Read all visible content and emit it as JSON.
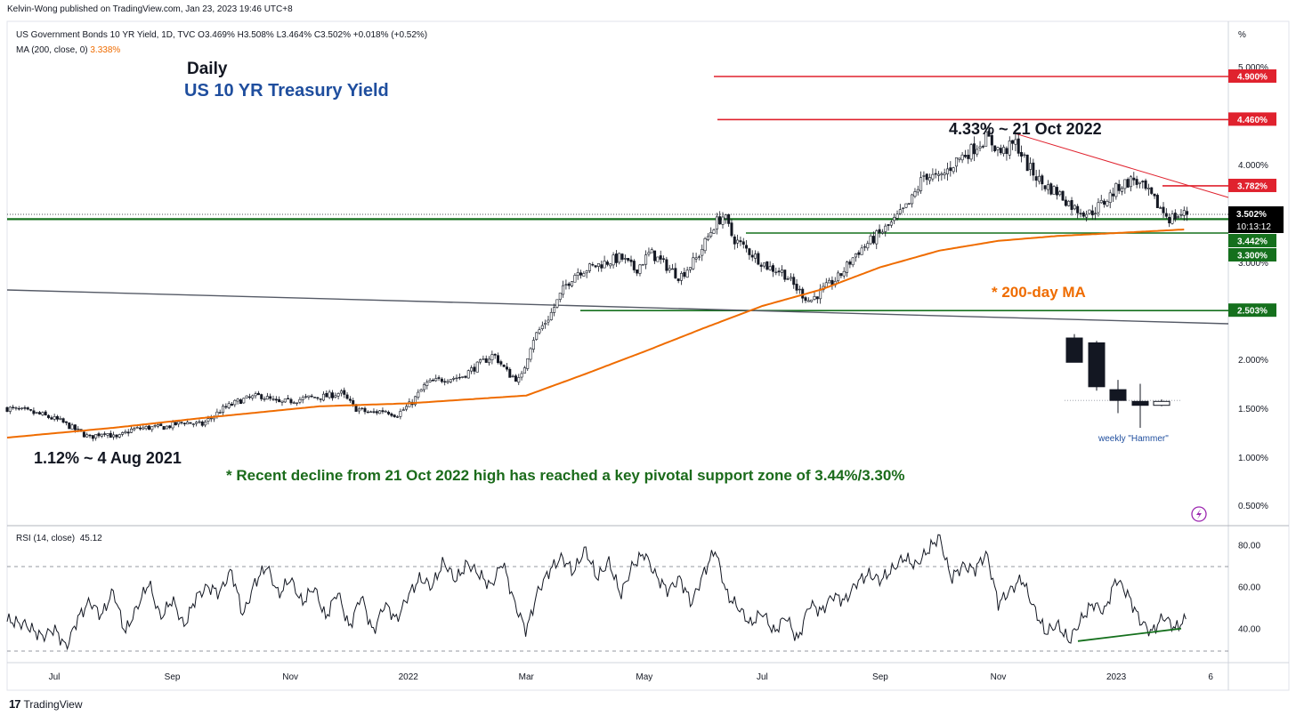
{
  "publisher": "Kelvin-Wong published on TradingView.com, Jan 23, 2023 19:46 UTC+8",
  "legend": {
    "symbol_line": "US Government Bonds 10 YR Yield, 1D, TVC  O3.469%  H3.508%  L3.464%  C3.502%  +0.018% (+0.52%)",
    "ma_label": "MA (200, close, 0)",
    "ma_value": "3.338%"
  },
  "brand": "TradingView",
  "colors": {
    "red": "#e0222e",
    "green": "#15701d",
    "dark_green_text": "#1b6b1b",
    "orange": "#ef6c00",
    "title_blue": "#1f4e9e",
    "grey_line": "#555a66",
    "black_tag": "#000000"
  },
  "chart_data": [
    {
      "type": "line",
      "title": "Daily",
      "subtitle": "US 10 YR Treasury Yield",
      "ylabel": "%",
      "y_unit_label": "%",
      "ylim": [
        0.3,
        5.5
      ],
      "y_ticks": [
        "5.000%",
        "4.000%",
        "3.000%",
        "2.000%",
        "1.500%",
        "1.000%",
        "0.500%"
      ],
      "y_tick_values": [
        5.0,
        4.0,
        3.0,
        2.0,
        1.5,
        1.0,
        0.5
      ],
      "x_ticks": [
        "Jul",
        "Sep",
        "Nov",
        "2022",
        "Mar",
        "May",
        "Jul",
        "Sep",
        "Nov",
        "2023",
        "6"
      ],
      "x_tick_months": [
        0,
        2,
        4,
        6,
        8,
        10,
        12,
        14,
        16,
        18,
        19.6
      ],
      "xlim_months": [
        -0.8,
        19.9
      ],
      "price_anchors": [
        [
          -0.8,
          1.5
        ],
        [
          -0.5,
          1.47
        ],
        [
          -0.2,
          1.43
        ],
        [
          0.1,
          1.37
        ],
        [
          0.3,
          1.3
        ],
        [
          0.6,
          1.2
        ],
        [
          0.85,
          1.26
        ],
        [
          1.05,
          1.19
        ],
        [
          1.3,
          1.28
        ],
        [
          1.55,
          1.3
        ],
        [
          1.9,
          1.31
        ],
        [
          2.2,
          1.36
        ],
        [
          2.5,
          1.33
        ],
        [
          2.85,
          1.49
        ],
        [
          3.15,
          1.58
        ],
        [
          3.5,
          1.63
        ],
        [
          3.8,
          1.55
        ],
        [
          4.05,
          1.58
        ],
        [
          4.35,
          1.61
        ],
        [
          4.6,
          1.62
        ],
        [
          4.85,
          1.66
        ],
        [
          5.1,
          1.5
        ],
        [
          5.35,
          1.45
        ],
        [
          5.6,
          1.48
        ],
        [
          5.8,
          1.43
        ],
        [
          6.05,
          1.55
        ],
        [
          6.3,
          1.75
        ],
        [
          6.6,
          1.8
        ],
        [
          6.9,
          1.82
        ],
        [
          7.2,
          1.95
        ],
        [
          7.45,
          2.05
        ],
        [
          7.7,
          1.85
        ],
        [
          7.9,
          1.78
        ],
        [
          8.1,
          2.2
        ],
        [
          8.4,
          2.45
        ],
        [
          8.65,
          2.75
        ],
        [
          8.85,
          2.9
        ],
        [
          9.1,
          2.95
        ],
        [
          9.35,
          3.0
        ],
        [
          9.6,
          3.05
        ],
        [
          9.85,
          2.92
        ],
        [
          10.1,
          3.1
        ],
        [
          10.4,
          2.95
        ],
        [
          10.6,
          2.85
        ],
        [
          10.9,
          3.05
        ],
        [
          11.2,
          3.4
        ],
        [
          11.35,
          3.48
        ],
        [
          11.5,
          3.25
        ],
        [
          11.8,
          3.1
        ],
        [
          12.1,
          2.95
        ],
        [
          12.35,
          2.9
        ],
        [
          12.55,
          2.75
        ],
        [
          12.8,
          2.6
        ],
        [
          13.0,
          2.7
        ],
        [
          13.3,
          2.85
        ],
        [
          13.6,
          3.1
        ],
        [
          13.9,
          3.25
        ],
        [
          14.2,
          3.4
        ],
        [
          14.5,
          3.6
        ],
        [
          14.75,
          3.9
        ],
        [
          15.0,
          3.85
        ],
        [
          15.3,
          4.05
        ],
        [
          15.55,
          4.15
        ],
        [
          15.8,
          4.28
        ],
        [
          16.05,
          4.12
        ],
        [
          16.3,
          4.22
        ],
        [
          16.5,
          3.98
        ],
        [
          16.75,
          3.8
        ],
        [
          17.0,
          3.72
        ],
        [
          17.3,
          3.55
        ],
        [
          17.55,
          3.5
        ],
        [
          17.8,
          3.62
        ],
        [
          18.05,
          3.78
        ],
        [
          18.3,
          3.85
        ],
        [
          18.55,
          3.7
        ],
        [
          18.75,
          3.55
        ],
        [
          18.9,
          3.45
        ],
        [
          19.05,
          3.48
        ],
        [
          19.2,
          3.502
        ]
      ],
      "ma_200_anchors": [
        [
          -0.8,
          1.2
        ],
        [
          1.0,
          1.3
        ],
        [
          2.5,
          1.4
        ],
        [
          4.5,
          1.52
        ],
        [
          6.0,
          1.55
        ],
        [
          7.0,
          1.59
        ],
        [
          8.0,
          1.63
        ],
        [
          9.0,
          1.85
        ],
        [
          10.0,
          2.08
        ],
        [
          11.0,
          2.32
        ],
        [
          12.0,
          2.55
        ],
        [
          13.0,
          2.72
        ],
        [
          14.0,
          2.95
        ],
        [
          15.0,
          3.12
        ],
        [
          16.0,
          3.22
        ],
        [
          17.0,
          3.27
        ],
        [
          18.0,
          3.3
        ],
        [
          19.2,
          3.338
        ]
      ],
      "horizontal_levels": [
        {
          "label": "4.900%",
          "value": 4.9,
          "color": "red"
        },
        {
          "label": "4.460%",
          "value": 4.46,
          "color": "red"
        },
        {
          "label": "3.782%",
          "value": 3.782,
          "color": "red"
        },
        {
          "label": "3.442%",
          "value": 3.442,
          "color": "green"
        },
        {
          "label": "3.300%",
          "value": 3.3,
          "color": "green"
        },
        {
          "label": "2.503%",
          "value": 2.503,
          "color": "green"
        }
      ],
      "last_price": {
        "value": "3.502%",
        "countdown": "10:13:12"
      },
      "annotations": {
        "high": "4.33% ~ 21 Oct 2022",
        "low": "1.12% ~ 4 Aug 2021",
        "ma_note": "* 200-day MA",
        "support_note": "* Recent decline from 21 Oct 2022 high has reached a key pivotal support zone of 3.44%/3.30%",
        "hammer": "weekly \"Hammer\""
      },
      "hammer_candles": [
        {
          "open": 2.22,
          "high": 2.26,
          "low": 1.97,
          "close": 1.97
        },
        {
          "open": 2.17,
          "high": 2.19,
          "low": 1.68,
          "close": 1.72
        },
        {
          "open": 1.69,
          "high": 1.79,
          "low": 1.45,
          "close": 1.58
        },
        {
          "open": 1.57,
          "high": 1.75,
          "low": 1.3,
          "close": 1.53
        },
        {
          "open": 1.53,
          "high": 1.59,
          "low": 1.52,
          "close": 1.57
        }
      ]
    },
    {
      "type": "line",
      "title": "RSI (14, close)",
      "value_label": "45.12",
      "ylim": [
        25,
        87
      ],
      "y_ticks": [
        "80.00",
        "60.00",
        "40.00"
      ],
      "y_tick_values": [
        80,
        60,
        40
      ],
      "bands": [
        70,
        30
      ],
      "rsi_anchors": [
        [
          -0.8,
          44
        ],
        [
          -0.5,
          42
        ],
        [
          -0.2,
          36
        ],
        [
          0.0,
          40
        ],
        [
          0.2,
          31
        ],
        [
          0.4,
          45
        ],
        [
          0.6,
          53
        ],
        [
          0.8,
          46
        ],
        [
          1.0,
          58
        ],
        [
          1.2,
          38
        ],
        [
          1.4,
          50
        ],
        [
          1.6,
          62
        ],
        [
          1.8,
          45
        ],
        [
          2.0,
          54
        ],
        [
          2.2,
          41
        ],
        [
          2.4,
          55
        ],
        [
          2.6,
          60
        ],
        [
          2.8,
          57
        ],
        [
          3.0,
          68
        ],
        [
          3.2,
          46
        ],
        [
          3.4,
          62
        ],
        [
          3.6,
          70
        ],
        [
          3.8,
          56
        ],
        [
          4.0,
          64
        ],
        [
          4.2,
          52
        ],
        [
          4.4,
          60
        ],
        [
          4.6,
          45
        ],
        [
          4.8,
          58
        ],
        [
          5.0,
          40
        ],
        [
          5.2,
          56
        ],
        [
          5.4,
          38
        ],
        [
          5.6,
          52
        ],
        [
          5.8,
          44
        ],
        [
          6.0,
          56
        ],
        [
          6.2,
          64
        ],
        [
          6.4,
          60
        ],
        [
          6.6,
          72
        ],
        [
          6.8,
          63
        ],
        [
          7.0,
          71
        ],
        [
          7.2,
          66
        ],
        [
          7.4,
          60
        ],
        [
          7.6,
          72
        ],
        [
          7.8,
          52
        ],
        [
          8.0,
          39
        ],
        [
          8.2,
          58
        ],
        [
          8.4,
          68
        ],
        [
          8.6,
          74
        ],
        [
          8.8,
          67
        ],
        [
          9.0,
          78
        ],
        [
          9.2,
          64
        ],
        [
          9.4,
          72
        ],
        [
          9.6,
          56
        ],
        [
          9.8,
          70
        ],
        [
          10.0,
          76
        ],
        [
          10.2,
          65
        ],
        [
          10.4,
          58
        ],
        [
          10.6,
          64
        ],
        [
          10.8,
          52
        ],
        [
          11.0,
          66
        ],
        [
          11.2,
          78
        ],
        [
          11.4,
          56
        ],
        [
          11.6,
          50
        ],
        [
          11.8,
          42
        ],
        [
          12.0,
          48
        ],
        [
          12.2,
          38
        ],
        [
          12.4,
          46
        ],
        [
          12.6,
          34
        ],
        [
          12.8,
          52
        ],
        [
          13.0,
          48
        ],
        [
          13.2,
          56
        ],
        [
          13.4,
          53
        ],
        [
          13.6,
          62
        ],
        [
          13.8,
          66
        ],
        [
          14.0,
          63
        ],
        [
          14.2,
          68
        ],
        [
          14.4,
          74
        ],
        [
          14.6,
          70
        ],
        [
          14.8,
          77
        ],
        [
          15.0,
          84
        ],
        [
          15.2,
          64
        ],
        [
          15.4,
          70
        ],
        [
          15.6,
          68
        ],
        [
          15.8,
          76
        ],
        [
          16.0,
          52
        ],
        [
          16.2,
          58
        ],
        [
          16.4,
          64
        ],
        [
          16.6,
          50
        ],
        [
          16.8,
          38
        ],
        [
          17.0,
          42
        ],
        [
          17.2,
          34
        ],
        [
          17.4,
          44
        ],
        [
          17.6,
          52
        ],
        [
          17.8,
          48
        ],
        [
          18.0,
          64
        ],
        [
          18.2,
          56
        ],
        [
          18.4,
          44
        ],
        [
          18.6,
          38
        ],
        [
          18.8,
          46
        ],
        [
          19.0,
          40
        ],
        [
          19.2,
          45.12
        ]
      ],
      "divergence": [
        [
          17.35,
          34
        ],
        [
          19.1,
          40
        ]
      ]
    }
  ]
}
